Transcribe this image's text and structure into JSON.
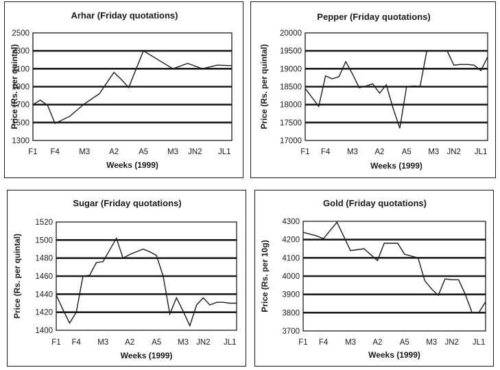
{
  "chart_data": [
    {
      "type": "line",
      "title": "Arhar (Friday quotations)",
      "xlabel": "Weeks (1999)",
      "ylabel": "Price (Rs. per quintal)",
      "ylim": [
        1300,
        2500
      ],
      "yticks": [
        1300,
        1500,
        1700,
        1900,
        2100,
        2300,
        2500
      ],
      "grid_y": [
        1500,
        1700,
        1900,
        2100,
        2300
      ],
      "xlim": [
        1,
        28
      ],
      "xtick_labels": [
        {
          "x": 1,
          "label": "F1"
        },
        {
          "x": 4,
          "label": "F4"
        },
        {
          "x": 8,
          "label": "M3"
        },
        {
          "x": 12,
          "label": "A2"
        },
        {
          "x": 16,
          "label": "A5"
        },
        {
          "x": 20,
          "label": "M3"
        },
        {
          "x": 23,
          "label": "JN2"
        },
        {
          "x": 27,
          "label": "JL1"
        }
      ],
      "series": [
        {
          "x": [
            1,
            2,
            3,
            4,
            6,
            8,
            10,
            12,
            13,
            14,
            16,
            18,
            20,
            22,
            24,
            26,
            28
          ],
          "y": [
            1700,
            1750,
            1690,
            1490,
            1570,
            1710,
            1820,
            2060,
            1980,
            1890,
            2300,
            2200,
            2100,
            2160,
            2100,
            2140,
            2135
          ]
        }
      ]
    },
    {
      "type": "line",
      "title": "Pepper (Friday quotations)",
      "xlabel": "Weeks (1999)",
      "ylabel": "Price (Rs. per quintal)",
      "ylim": [
        17000,
        20000
      ],
      "yticks": [
        17000,
        17500,
        18000,
        18500,
        19000,
        19500,
        20000
      ],
      "grid_y": [
        17500,
        18000,
        18500,
        19000,
        19500
      ],
      "xlim": [
        1,
        28
      ],
      "xtick_labels": [
        {
          "x": 1,
          "label": "F1"
        },
        {
          "x": 4,
          "label": "F4"
        },
        {
          "x": 8,
          "label": "M3"
        },
        {
          "x": 12,
          "label": "A2"
        },
        {
          "x": 16,
          "label": "A5"
        },
        {
          "x": 20,
          "label": "M3"
        },
        {
          "x": 23,
          "label": "JN2"
        },
        {
          "x": 27,
          "label": "JL1"
        }
      ],
      "series": [
        {
          "x": [
            1,
            3,
            4,
            5,
            6,
            7,
            8,
            9,
            10,
            11,
            12,
            13,
            14,
            15,
            16,
            17,
            18,
            19,
            20,
            21,
            22,
            23,
            24,
            25,
            26,
            27,
            28
          ],
          "y": [
            18450,
            17950,
            18800,
            18720,
            18780,
            19200,
            18850,
            18470,
            18520,
            18580,
            18320,
            18550,
            17900,
            17340,
            18500,
            18520,
            18510,
            19500,
            19500,
            19500,
            19500,
            19100,
            19120,
            19120,
            19100,
            18950,
            19330
          ]
        }
      ]
    },
    {
      "type": "line",
      "title": "Sugar (Friday quotations)",
      "xlabel": "Weeks (1999)",
      "ylabel": "Price (Rs. per quintal)",
      "ylim": [
        1400,
        1520
      ],
      "yticks": [
        1400,
        1420,
        1440,
        1460,
        1480,
        1500,
        1520
      ],
      "grid_y": [
        1420,
        1440,
        1460,
        1480,
        1500
      ],
      "xlim": [
        1,
        28
      ],
      "xtick_labels": [
        {
          "x": 1,
          "label": "F1"
        },
        {
          "x": 4,
          "label": "F4"
        },
        {
          "x": 8,
          "label": "M3"
        },
        {
          "x": 12,
          "label": "A2"
        },
        {
          "x": 16,
          "label": "A5"
        },
        {
          "x": 20,
          "label": "M3"
        },
        {
          "x": 23,
          "label": "JN2"
        },
        {
          "x": 27,
          "label": "JL1"
        }
      ],
      "series": [
        {
          "x": [
            1,
            2,
            3,
            4,
            5,
            6,
            7,
            8,
            9,
            10,
            11,
            12,
            13,
            14,
            15,
            16,
            17,
            18,
            19,
            20,
            21,
            22,
            23,
            24,
            25,
            26,
            27,
            28
          ],
          "y": [
            1439,
            1423,
            1408,
            1420,
            1460,
            1461,
            1475,
            1476,
            1489,
            1502,
            1480,
            1484,
            1487,
            1490,
            1487,
            1483,
            1460,
            1418,
            1436,
            1421,
            1405,
            1428,
            1436,
            1428,
            1431,
            1431,
            1430,
            1430
          ]
        }
      ]
    },
    {
      "type": "line",
      "title": "Gold (Friday quotations)",
      "xlabel": "Weeks (1999)",
      "ylabel": "Price (Rs. per 10g)",
      "ylim": [
        3700,
        4300
      ],
      "yticks": [
        3700,
        3800,
        3900,
        4000,
        4100,
        4200,
        4300
      ],
      "grid_y": [
        3800,
        3900,
        4000,
        4100,
        4200
      ],
      "xlim": [
        1,
        28
      ],
      "xtick_labels": [
        {
          "x": 1,
          "label": "F1"
        },
        {
          "x": 4,
          "label": "F4"
        },
        {
          "x": 8,
          "label": "M3"
        },
        {
          "x": 12,
          "label": "A2"
        },
        {
          "x": 16,
          "label": "A5"
        },
        {
          "x": 20,
          "label": "M3"
        },
        {
          "x": 23,
          "label": "JN2"
        },
        {
          "x": 27,
          "label": "JL1"
        }
      ],
      "series": [
        {
          "x": [
            1,
            3,
            4,
            6,
            8,
            10,
            12,
            13,
            14,
            15,
            16,
            17,
            18,
            19,
            20,
            21,
            22,
            23,
            24,
            25,
            26,
            27,
            28,
            28.5
          ],
          "y": [
            4240,
            4220,
            4205,
            4295,
            4140,
            4150,
            4085,
            4180,
            4180,
            4180,
            4120,
            4110,
            4100,
            3975,
            3930,
            3895,
            3985,
            3980,
            3980,
            3900,
            3800,
            3800,
            3860,
            3860
          ]
        }
      ]
    }
  ]
}
